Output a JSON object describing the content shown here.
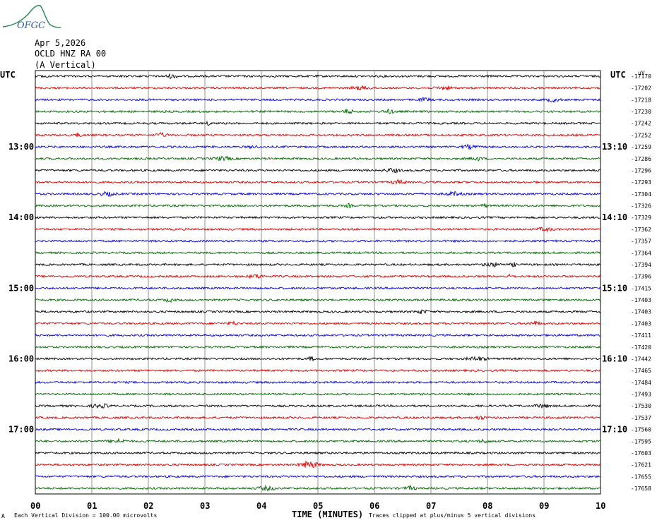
{
  "logo": {
    "text": "OFGC",
    "color": "#2b5fa8",
    "mountain_color": "#2e8b57"
  },
  "header": {
    "date": "Apr 5,2026",
    "station": "OCLD HNZ RA 00",
    "component": "(A Vertical)"
  },
  "left_axis_label": "UTC",
  "right_axis_label": "UTC",
  "chart_data": {
    "type": "line",
    "title": "",
    "xlabel": "TIME (MINUTES)",
    "ylabel": "",
    "xlim": [
      0,
      10
    ],
    "x_ticks": [
      "00",
      "01",
      "02",
      "03",
      "04",
      "05",
      "06",
      "07",
      "08",
      "09",
      "10"
    ],
    "trace_colors": [
      "#000000",
      "#dd0000",
      "#0000dd",
      "#006600"
    ],
    "left_hour_labels": [
      {
        "row": 6,
        "text": "13:00"
      },
      {
        "row": 12,
        "text": "14:00"
      },
      {
        "row": 18,
        "text": "15:00"
      },
      {
        "row": 24,
        "text": "16:00"
      },
      {
        "row": 30,
        "text": "17:00"
      }
    ],
    "right_hour_labels": [
      {
        "row": 6,
        "text": "13:10"
      },
      {
        "row": 12,
        "text": "14:10"
      },
      {
        "row": 18,
        "text": "15:10"
      },
      {
        "row": 24,
        "text": "16:10"
      },
      {
        "row": 30,
        "text": "17:10"
      }
    ],
    "row_values": [
      "-17170",
      "-17202",
      "-17218",
      "-17230",
      "-17242",
      "-17252",
      "-17259",
      "-17286",
      "-17296",
      "-17293",
      "-17304",
      "-17326",
      "-17329",
      "-17362",
      "-17357",
      "-17364",
      "-17394",
      "-17396",
      "-17415",
      "-17403",
      "-17403",
      "-17403",
      "-17411",
      "-17420",
      "-17442",
      "-17465",
      "-17484",
      "-17493",
      "-17530",
      "-17537",
      "-17560",
      "-17595",
      "-17603",
      "-17621",
      "-17655",
      "-17658"
    ],
    "grid": true
  },
  "footer": {
    "left": "Each Vertical Division =  100.00 microvolts",
    "right": "Traces clipped at plus/minus 5 vertical divisions"
  }
}
